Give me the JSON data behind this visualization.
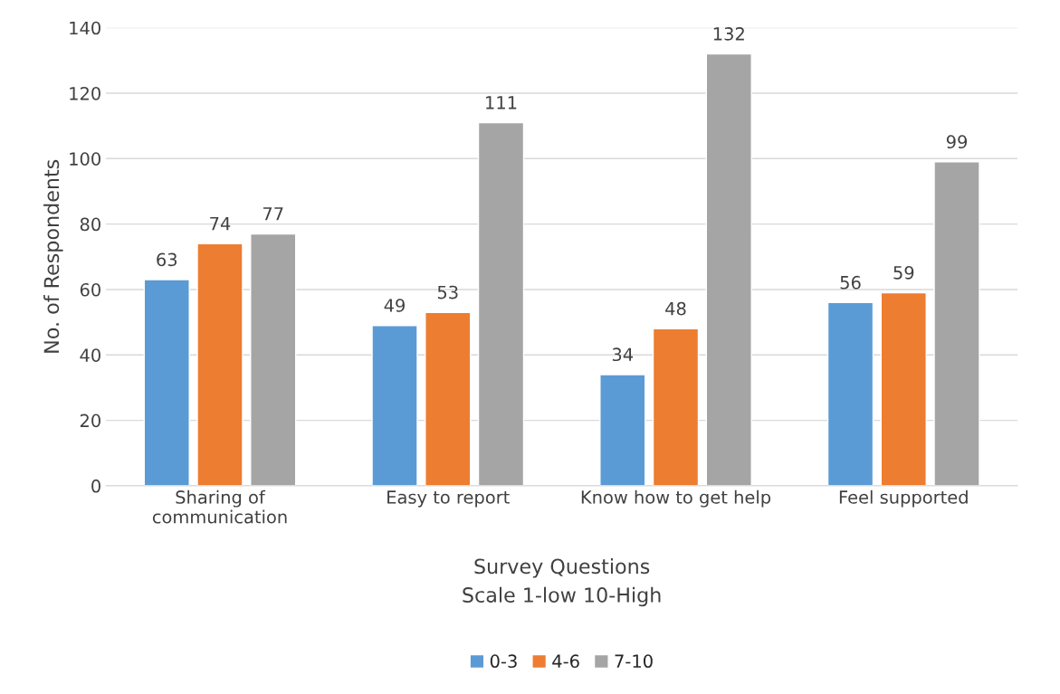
{
  "chart_data": {
    "type": "bar",
    "categories": [
      "Sharing of\ncommunication",
      "Easy to report",
      "Know how to get help",
      "Feel supported"
    ],
    "series": [
      {
        "name": "0-3",
        "color": "#5b9bd5",
        "values": [
          63,
          49,
          34,
          56
        ]
      },
      {
        "name": "4-6",
        "color": "#ed7d31",
        "values": [
          74,
          53,
          48,
          59
        ]
      },
      {
        "name": "7-10",
        "color": "#a5a5a5",
        "values": [
          77,
          111,
          132,
          99
        ]
      }
    ],
    "xlabel": "Survey Questions\nScale 1-low 10-High",
    "ylabel": "No. of Respondents",
    "ylim": [
      0,
      140
    ],
    "yticks": [
      0,
      20,
      40,
      60,
      80,
      100,
      120,
      140
    ],
    "grid": "y",
    "legend": "bottom",
    "data_labels": true
  }
}
